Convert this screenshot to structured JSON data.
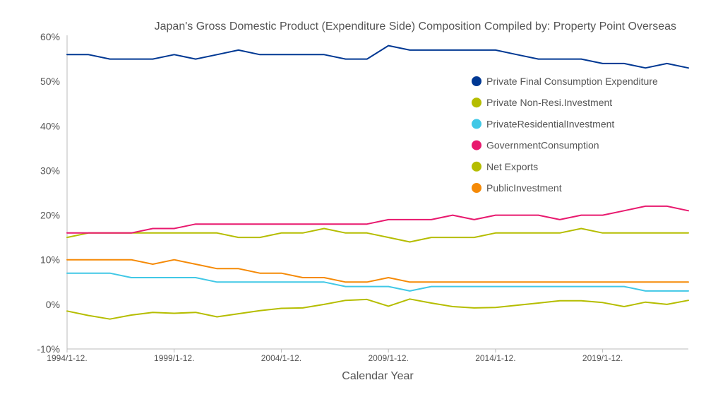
{
  "chart_data": {
    "type": "line",
    "title": "Japan's Gross Domestic Product (Expenditure Side) Composition Compiled by: Property Point Overseas",
    "xlabel": "Calendar Year",
    "ylabel": "",
    "ylim": [
      -10,
      60
    ],
    "y_ticks": [
      -10,
      0,
      10,
      20,
      30,
      40,
      50,
      60
    ],
    "y_tick_labels": [
      "-10%",
      "0%",
      "10%",
      "20%",
      "30%",
      "40%",
      "50%",
      "60%"
    ],
    "x": [
      1994,
      1995,
      1996,
      1997,
      1998,
      1999,
      2000,
      2001,
      2002,
      2003,
      2004,
      2005,
      2006,
      2007,
      2008,
      2009,
      2010,
      2011,
      2012,
      2013,
      2014,
      2015,
      2016,
      2017,
      2018,
      2019,
      2020,
      2021,
      2022,
      2023
    ],
    "x_tick_labels": [
      "1994/1-12.",
      "1999/1-12.",
      "2004/1-12.",
      "2009/1-12.",
      "2014/1-12.",
      "2019/1-12."
    ],
    "x_tick_values": [
      1994,
      1999,
      2004,
      2009,
      2014,
      2019
    ],
    "grid": false,
    "legend_position": "right",
    "series": [
      {
        "name": "Private Final Consumption Expenditure",
        "color": "#003893",
        "values": [
          56,
          56,
          55,
          55,
          55,
          56,
          55,
          56,
          57,
          56,
          56,
          56,
          56,
          55,
          55,
          58,
          57,
          57,
          57,
          57,
          57,
          56,
          55,
          55,
          55,
          54,
          54,
          53,
          54,
          53
        ]
      },
      {
        "name": "Private Non-Resi.Investment",
        "color": "#b5bd00",
        "values": [
          15,
          16,
          16,
          16,
          16,
          16,
          16,
          16,
          15,
          15,
          16,
          16,
          17,
          16,
          16,
          15,
          14,
          15,
          15,
          15,
          16,
          16,
          16,
          16,
          17,
          16,
          16,
          16,
          16,
          16
        ]
      },
      {
        "name": "PrivateResidentialInvestment",
        "color": "#41c8e6",
        "values": [
          7,
          7,
          7,
          6,
          6,
          6,
          6,
          5,
          5,
          5,
          5,
          5,
          5,
          4,
          4,
          4,
          3,
          4,
          4,
          4,
          4,
          4,
          4,
          4,
          4,
          4,
          4,
          3,
          3,
          3
        ]
      },
      {
        "name": "GovernmentConsumption",
        "color": "#e8196e",
        "values": [
          16,
          16,
          16,
          16,
          17,
          17,
          18,
          18,
          18,
          18,
          18,
          18,
          18,
          18,
          18,
          19,
          19,
          19,
          20,
          19,
          20,
          20,
          20,
          19,
          20,
          20,
          21,
          22,
          22,
          21
        ]
      },
      {
        "name": "Net Exports",
        "color": "#b5bd00",
        "values": [
          -1.5,
          -2.5,
          -3.3,
          -2.4,
          -1.8,
          -2.0,
          -1.8,
          -2.8,
          -2.1,
          -1.4,
          -0.9,
          -0.8,
          0,
          0.9,
          1.1,
          -0.4,
          1.2,
          0.3,
          -0.5,
          -0.8,
          -0.7,
          -0.2,
          0.3,
          0.8,
          0.8,
          0.4,
          -0.5,
          0.5,
          0,
          0.9
        ]
      },
      {
        "name": "PublicInvestment",
        "color": "#f58a07",
        "values": [
          10,
          10,
          10,
          10,
          9,
          10,
          9,
          8,
          8,
          7,
          7,
          6,
          6,
          5,
          5,
          6,
          5,
          5,
          5,
          5,
          5,
          5,
          5,
          5,
          5,
          5,
          5,
          5,
          5,
          5
        ]
      }
    ]
  }
}
